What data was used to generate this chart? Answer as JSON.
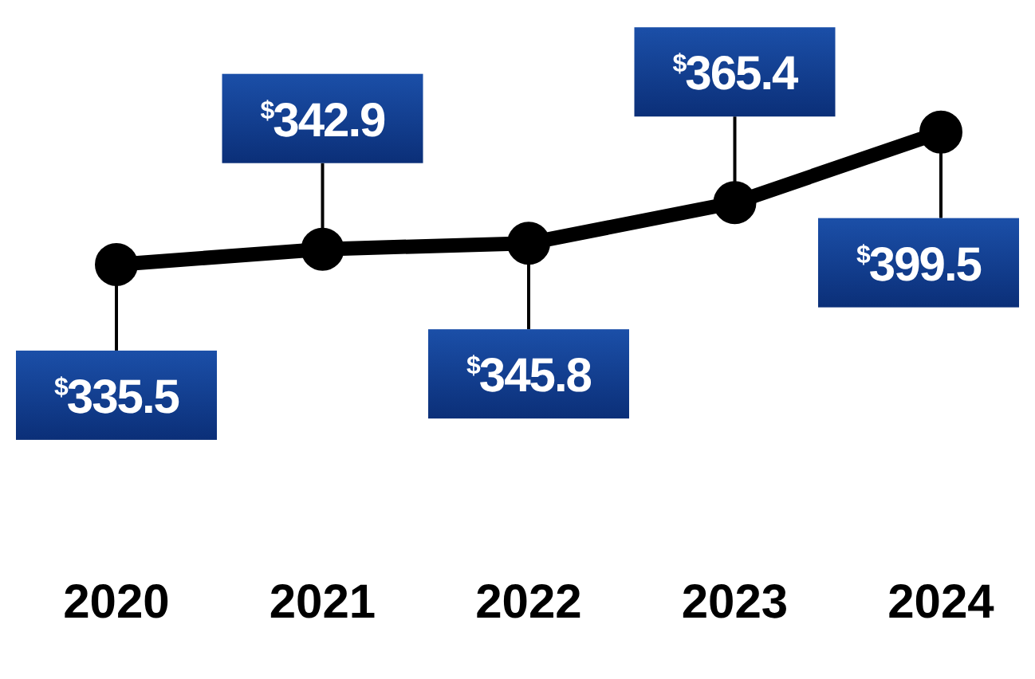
{
  "chart_data": {
    "type": "line",
    "categories": [
      "2020",
      "2021",
      "2022",
      "2023",
      "2024"
    ],
    "series": [
      {
        "color": "#000000",
        "values": [
          335.5,
          342.9,
          345.8,
          365.4,
          399.5
        ],
        "value_labels": [
          "$^{$}$335.5",
          "$^{$}$342.9",
          "$^{$}$345.8",
          "$^{$}$365.4",
          "$^{$}$399.5"
        ]
      }
    ],
    "marker": "circle",
    "line_style": "solid",
    "grid": false,
    "tick_labels": "x"
  }
}
